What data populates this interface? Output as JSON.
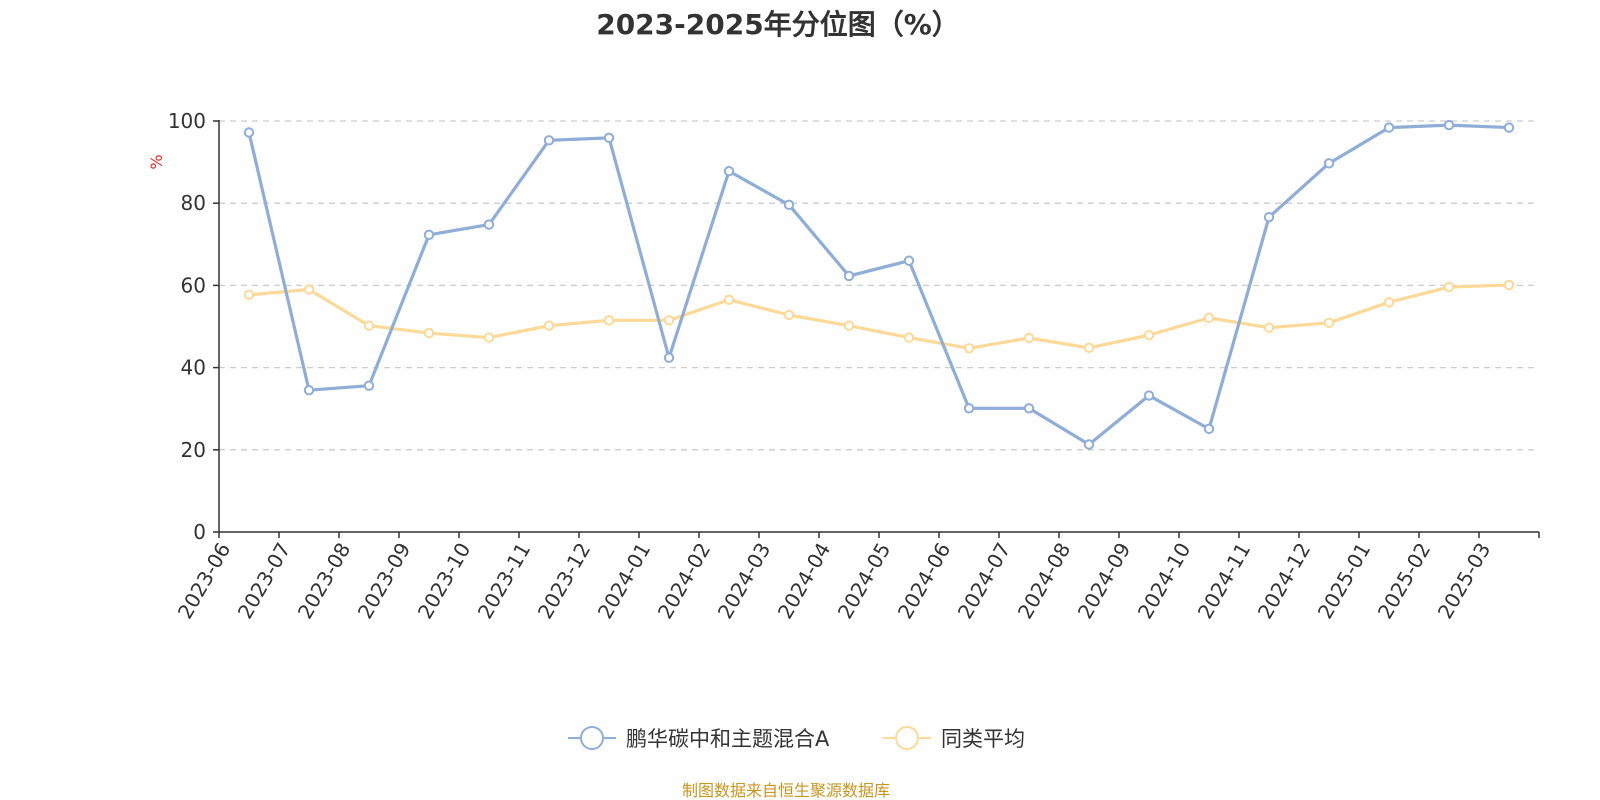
{
  "chart_data": {
    "type": "line",
    "title": "2023-2025年分位图（%）",
    "ylabel": "%",
    "xlabel": "",
    "ylim": [
      0,
      100
    ],
    "yticks": [
      0,
      20,
      40,
      60,
      80,
      100
    ],
    "grid": true,
    "legend_position": "bottom",
    "categories": [
      "2023-06",
      "2023-07",
      "2023-08",
      "2023-09",
      "2023-10",
      "2023-11",
      "2023-12",
      "2024-01",
      "2024-02",
      "2024-03",
      "2024-04",
      "2024-05",
      "2024-06",
      "2024-07",
      "2024-08",
      "2024-09",
      "2024-10",
      "2024-11",
      "2024-12",
      "2025-01",
      "2025-02",
      "2025-03"
    ],
    "series": [
      {
        "name": "鹏华碳中和主题混合A",
        "color": "#8eadd7",
        "values": [
          97.2,
          34.5,
          35.6,
          72.3,
          74.8,
          95.3,
          95.9,
          42.4,
          87.8,
          79.6,
          62.3,
          66.0,
          30.1,
          30.1,
          21.3,
          33.2,
          25.1,
          76.6,
          89.7,
          98.4,
          99.0,
          98.4
        ]
      },
      {
        "name": "同类平均",
        "color": "#fdd997",
        "values": [
          57.7,
          59.0,
          50.2,
          48.4,
          47.3,
          50.2,
          51.5,
          51.5,
          56.5,
          52.8,
          50.2,
          47.3,
          44.7,
          47.2,
          44.8,
          47.9,
          52.1,
          49.7,
          50.9,
          55.9,
          59.6,
          60.1
        ]
      }
    ]
  },
  "unit_color": "#e82929",
  "source": {
    "text": "制图数据来自恒生聚源数据库",
    "color": "#c8961e"
  }
}
